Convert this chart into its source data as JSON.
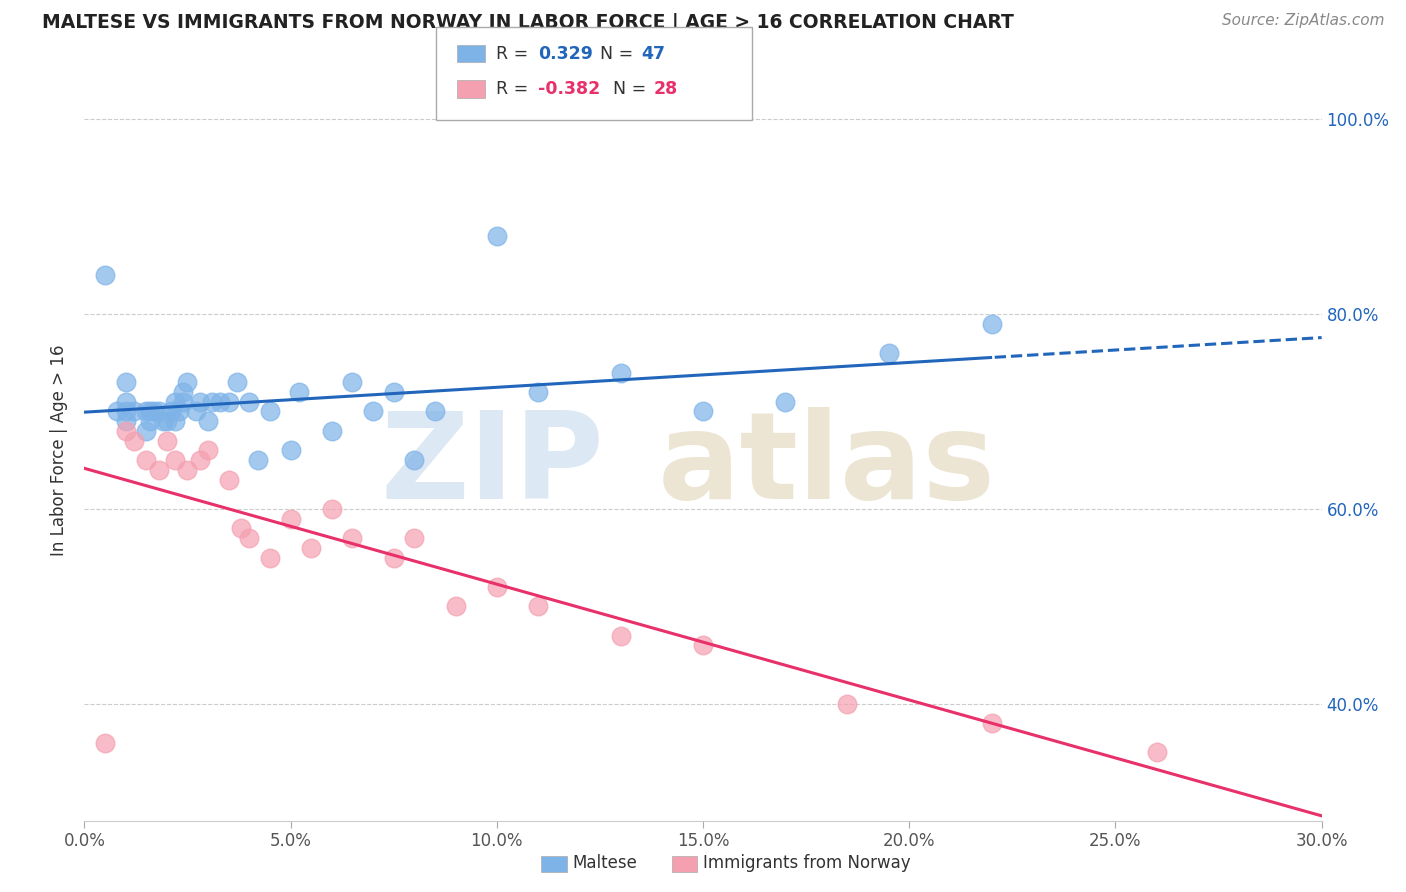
{
  "title": "MALTESE VS IMMIGRANTS FROM NORWAY IN LABOR FORCE | AGE > 16 CORRELATION CHART",
  "source_text": "Source: ZipAtlas.com",
  "ylabel": "In Labor Force | Age > 16",
  "xlim": [
    0.0,
    0.3
  ],
  "ylim": [
    0.28,
    1.04
  ],
  "xtick_labels": [
    "0.0%",
    "5.0%",
    "10.0%",
    "15.0%",
    "20.0%",
    "25.0%",
    "30.0%"
  ],
  "xtick_vals": [
    0.0,
    0.05,
    0.1,
    0.15,
    0.2,
    0.25,
    0.3
  ],
  "ytick_labels": [
    "40.0%",
    "60.0%",
    "80.0%",
    "100.0%"
  ],
  "ytick_vals": [
    0.4,
    0.6,
    0.8,
    1.0
  ],
  "blue_R": 0.329,
  "blue_N": 47,
  "pink_R": -0.382,
  "pink_N": 28,
  "blue_color": "#7EB3E8",
  "pink_color": "#F4A0B0",
  "blue_line_color": "#2266BB",
  "pink_line_color": "#E8306A",
  "blue_x": [
    0.005,
    0.008,
    0.01,
    0.01,
    0.01,
    0.01,
    0.012,
    0.015,
    0.015,
    0.016,
    0.016,
    0.017,
    0.018,
    0.019,
    0.02,
    0.021,
    0.022,
    0.022,
    0.023,
    0.024,
    0.024,
    0.025,
    0.027,
    0.028,
    0.03,
    0.031,
    0.033,
    0.035,
    0.037,
    0.04,
    0.042,
    0.045,
    0.05,
    0.052,
    0.06,
    0.065,
    0.07,
    0.075,
    0.08,
    0.085,
    0.1,
    0.11,
    0.13,
    0.15,
    0.17,
    0.195,
    0.22
  ],
  "blue_y": [
    0.84,
    0.7,
    0.69,
    0.7,
    0.71,
    0.73,
    0.7,
    0.68,
    0.7,
    0.69,
    0.7,
    0.7,
    0.7,
    0.69,
    0.69,
    0.7,
    0.69,
    0.71,
    0.7,
    0.71,
    0.72,
    0.73,
    0.7,
    0.71,
    0.69,
    0.71,
    0.71,
    0.71,
    0.73,
    0.71,
    0.65,
    0.7,
    0.66,
    0.72,
    0.68,
    0.73,
    0.7,
    0.72,
    0.65,
    0.7,
    0.88,
    0.72,
    0.74,
    0.7,
    0.71,
    0.76,
    0.79
  ],
  "pink_x": [
    0.005,
    0.01,
    0.012,
    0.015,
    0.018,
    0.02,
    0.022,
    0.025,
    0.028,
    0.03,
    0.035,
    0.038,
    0.04,
    0.045,
    0.05,
    0.055,
    0.06,
    0.065,
    0.075,
    0.08,
    0.09,
    0.1,
    0.11,
    0.13,
    0.15,
    0.185,
    0.22,
    0.26
  ],
  "pink_y": [
    0.36,
    0.68,
    0.67,
    0.65,
    0.64,
    0.67,
    0.65,
    0.64,
    0.65,
    0.66,
    0.63,
    0.58,
    0.57,
    0.55,
    0.59,
    0.56,
    0.6,
    0.57,
    0.55,
    0.57,
    0.5,
    0.52,
    0.5,
    0.47,
    0.46,
    0.4,
    0.38,
    0.35
  ]
}
